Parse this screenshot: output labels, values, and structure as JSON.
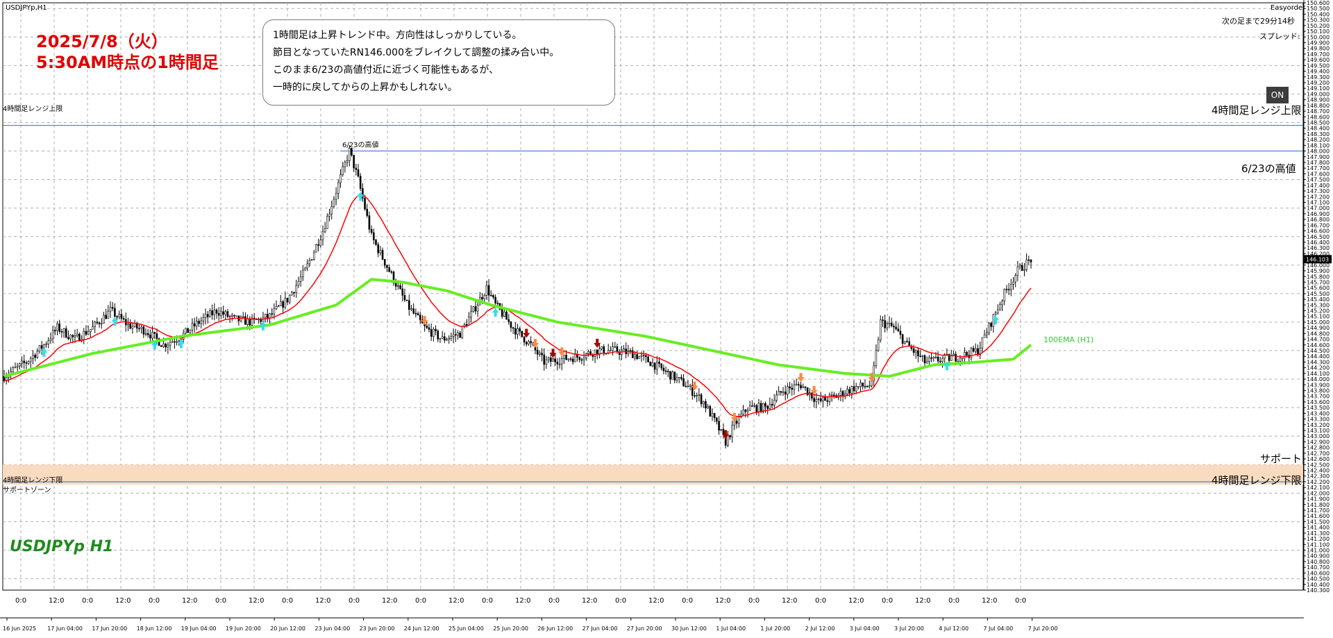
{
  "window": {
    "symbol_caption": "USDJPYp,H1",
    "broker_caption": "Easyorder"
  },
  "header": {
    "date_line": "2025/7/8（火）",
    "time_line": "5:30AM時点の1時間足",
    "countdown": "次の足まで29分14秒",
    "spread": "スプレッド:"
  },
  "note": {
    "lines": [
      "1時間足は上昇トレンド中。方向性はしっかりしている。",
      "節目となっていたRN146.000をブレイクして調整の揉み合い中。",
      "このまま6/23の高値付近に近づく可能性もあるが、",
      "一時的に戻してからの上昇かもしれない。"
    ]
  },
  "buttons": {
    "on": "ON"
  },
  "lines_labels": {
    "h4_upper_left": "4時間足レンジ上限",
    "h4_upper_right": "4時間足レンジ上限",
    "high_0623_top": "6/23の高値",
    "high_0623_right": "6/23の高値",
    "support_right": "サポート",
    "h4_lower_left": "4時間足レンジ下限",
    "support_zone_left": "サポートゾーン",
    "h4_lower_right": "4時間足レンジ下限",
    "ema_label": "100EMA (H1)"
  },
  "watermark": "USDJPYp H1",
  "colors": {
    "candle": "#000000",
    "ema_fast": "#ff0000",
    "ema_100": "#66ee22",
    "range_line": "#1e6fd0",
    "support_zone": "#f9dcc0",
    "up_arrow": "#33ddee",
    "down_arrow_light": "#ff8844",
    "down_arrow_dark": "#aa0000",
    "grid": "#b0b0b0"
  },
  "chart_data": {
    "type": "candlestick",
    "symbol": "USDJPYp",
    "timeframe": "H1",
    "ylim": [
      140.3,
      150.6
    ],
    "price_axis_ticks": [
      150.6,
      150.5,
      150.4,
      150.3,
      150.2,
      150.1,
      150.0,
      149.9,
      149.8,
      149.7,
      149.6,
      149.5,
      149.4,
      149.3,
      149.2,
      149.1,
      149.0,
      148.9,
      148.8,
      148.7,
      148.6,
      148.5,
      148.4,
      148.3,
      148.2,
      148.1,
      148.0,
      147.9,
      147.8,
      147.7,
      147.6,
      147.5,
      147.4,
      147.3,
      147.2,
      147.1,
      147.0,
      146.9,
      146.8,
      146.7,
      146.6,
      146.5,
      146.4,
      146.3,
      146.2,
      146.1,
      146.0,
      145.9,
      145.8,
      145.7,
      145.6,
      145.5,
      145.4,
      145.3,
      145.2,
      145.1,
      145.0,
      144.9,
      144.8,
      144.7,
      144.6,
      144.5,
      144.4,
      144.3,
      144.2,
      144.1,
      144.0,
      143.9,
      143.8,
      143.7,
      143.6,
      143.5,
      143.4,
      143.3,
      143.2,
      143.1,
      143.0,
      142.9,
      142.8,
      142.7,
      142.6,
      142.5,
      142.4,
      142.3,
      142.2,
      142.1,
      142.0,
      141.9,
      141.8,
      141.7,
      141.6,
      141.5,
      141.4,
      141.3,
      141.2,
      141.1,
      141.0,
      140.9,
      140.8,
      140.7,
      140.6,
      140.5,
      140.4,
      140.3
    ],
    "current_price": "146.103",
    "time_axis_labels": [
      "16 Jun 2025",
      "17 Jun 04:00",
      "17 Jun 20:00",
      "18 Jun 12:00",
      "19 Jun 04:00",
      "19 Jun 20:00",
      "20 Jun 12:00",
      "23 Jun 04:00",
      "23 Jun 20:00",
      "24 Jun 12:00",
      "25 Jun 04:00",
      "25 Jun 20:00",
      "26 Jun 12:00",
      "27 Jun 04:00",
      "27 Jun 20:00",
      "30 Jun 12:00",
      "1 Jul 04:00",
      "1 Jul 20:00",
      "2 Jul 12:00",
      "3 Jul 04:00",
      "3 Jul 20:00",
      "4 Jul 12:00",
      "7 Jul 04:00",
      "7 Jul 20:00"
    ],
    "hour_markers": [
      "0:0",
      "12:0",
      "0:0",
      "12:0",
      "0:0",
      "12:0",
      "0:0",
      "12:0",
      "0:0",
      "12:0",
      "0:0",
      "12:0",
      "0:0",
      "12:0",
      "0:0",
      "12:0",
      "0:0",
      "12:0",
      "0:0",
      "12:0",
      "0:0",
      "12:0",
      "0:0",
      "12:0",
      "0:0",
      "12:0",
      "0:0",
      "12:0",
      "0:0",
      "12:0",
      "0:0"
    ],
    "price_path": [
      [
        0,
        144.05
      ],
      [
        10,
        144.3
      ],
      [
        18,
        144.6
      ],
      [
        24,
        144.9
      ],
      [
        32,
        144.7
      ],
      [
        40,
        144.9
      ],
      [
        48,
        145.2
      ],
      [
        56,
        144.95
      ],
      [
        64,
        144.85
      ],
      [
        72,
        144.6
      ],
      [
        80,
        144.75
      ],
      [
        88,
        145.0
      ],
      [
        96,
        145.2
      ],
      [
        104,
        145.05
      ],
      [
        112,
        145.0
      ],
      [
        120,
        145.1
      ],
      [
        128,
        145.4
      ],
      [
        136,
        145.9
      ],
      [
        144,
        146.6
      ],
      [
        150,
        147.3
      ],
      [
        156,
        148.0
      ],
      [
        160,
        147.5
      ],
      [
        166,
        146.5
      ],
      [
        174,
        145.9
      ],
      [
        182,
        145.3
      ],
      [
        190,
        144.9
      ],
      [
        198,
        144.7
      ],
      [
        206,
        144.8
      ],
      [
        212,
        145.2
      ],
      [
        218,
        145.6
      ],
      [
        222,
        145.3
      ],
      [
        230,
        144.9
      ],
      [
        238,
        144.6
      ],
      [
        244,
        144.3
      ],
      [
        252,
        144.35
      ],
      [
        260,
        144.4
      ],
      [
        268,
        144.5
      ],
      [
        276,
        144.5
      ],
      [
        284,
        144.45
      ],
      [
        292,
        144.3
      ],
      [
        300,
        144.1
      ],
      [
        308,
        143.9
      ],
      [
        316,
        143.6
      ],
      [
        322,
        143.2
      ],
      [
        326,
        142.9
      ],
      [
        330,
        143.2
      ],
      [
        336,
        143.5
      ],
      [
        344,
        143.5
      ],
      [
        352,
        143.8
      ],
      [
        360,
        143.9
      ],
      [
        368,
        143.6
      ],
      [
        376,
        143.7
      ],
      [
        384,
        143.85
      ],
      [
        392,
        143.9
      ],
      [
        396,
        145.0
      ],
      [
        402,
        144.9
      ],
      [
        408,
        144.6
      ],
      [
        416,
        144.3
      ],
      [
        424,
        144.35
      ],
      [
        432,
        144.4
      ],
      [
        440,
        144.5
      ],
      [
        446,
        145.0
      ],
      [
        452,
        145.5
      ],
      [
        458,
        145.9
      ],
      [
        464,
        146.1
      ]
    ],
    "ema_100_path": [
      [
        0,
        144.05
      ],
      [
        40,
        144.45
      ],
      [
        80,
        144.75
      ],
      [
        120,
        144.95
      ],
      [
        150,
        145.3
      ],
      [
        166,
        145.75
      ],
      [
        180,
        145.7
      ],
      [
        200,
        145.55
      ],
      [
        220,
        145.3
      ],
      [
        250,
        145.0
      ],
      [
        290,
        144.75
      ],
      [
        320,
        144.5
      ],
      [
        350,
        144.25
      ],
      [
        380,
        144.1
      ],
      [
        400,
        144.05
      ],
      [
        420,
        144.25
      ],
      [
        440,
        144.3
      ],
      [
        456,
        144.35
      ],
      [
        464,
        144.6
      ]
    ],
    "levels": [
      {
        "name": "4時間足レンジ上限",
        "price": 148.45
      },
      {
        "name": "6/23の高値",
        "price": 148.0
      },
      {
        "name": "4時間足レンジ下限",
        "price": 142.2
      },
      {
        "name": "サポートゾーン",
        "from": 142.15,
        "to": 142.5
      }
    ],
    "annotations": [
      {
        "text": "6/23の高値"
      },
      {
        "text": "100EMA (H1)"
      }
    ]
  }
}
